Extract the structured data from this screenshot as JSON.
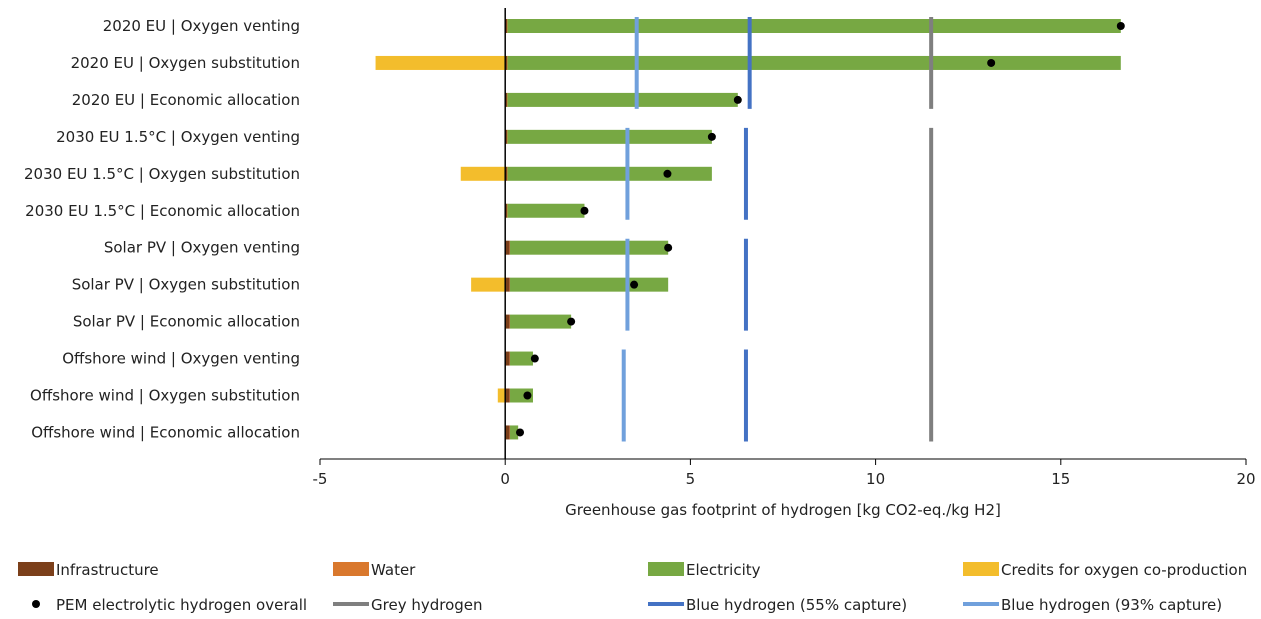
{
  "chart_data": {
    "type": "bar",
    "orientation": "horizontal",
    "stacked": true,
    "xlabel": "Greenhouse gas footprint of hydrogen [kg CO2-eq./kg H2]",
    "xlim": [
      -5,
      20
    ],
    "xticks": [
      "-5",
      "0",
      "5",
      "10",
      "15",
      "20"
    ],
    "grid": false,
    "legend_position": "bottom",
    "categories": [
      "2020 EU | Oxygen venting",
      "2020 EU | Oxygen substitution",
      "2020 EU | Economic allocation",
      "2030 EU 1.5°C | Oxygen venting",
      "2030 EU 1.5°C | Oxygen substitution",
      "2030 EU 1.5°C | Economic allocation",
      "Solar PV | Oxygen venting",
      "Solar PV | Oxygen substitution",
      "Solar PV | Economic allocation",
      "Offshore wind | Oxygen venting",
      "Offshore wind | Oxygen substitution",
      "Offshore wind | Economic allocation"
    ],
    "series": [
      {
        "name": "Infrastructure",
        "color": "#7b3f1a",
        "values": [
          0.05,
          0.05,
          0.05,
          0.05,
          0.05,
          0.05,
          0.12,
          0.12,
          0.12,
          0.12,
          0.12,
          0.12
        ]
      },
      {
        "name": "Water",
        "color": "#d9782d",
        "values": [
          0.01,
          0.01,
          0.01,
          0.01,
          0.01,
          0.01,
          0.01,
          0.01,
          0.01,
          0.01,
          0.01,
          0.01
        ]
      },
      {
        "name": "Electricity",
        "color": "#77a843",
        "values": [
          16.56,
          16.56,
          6.22,
          5.52,
          5.52,
          2.08,
          4.27,
          4.27,
          1.65,
          0.62,
          0.62,
          0.22
        ]
      },
      {
        "name": "Credits for oxygen co-production",
        "color": "#f3bd2c",
        "values": [
          0,
          -3.5,
          0,
          0,
          -1.2,
          0,
          0,
          -0.92,
          0,
          0,
          -0.2,
          0
        ]
      }
    ],
    "overall": {
      "name": "PEM electrolytic hydrogen overall",
      "color": "#000000",
      "values": [
        16.62,
        13.12,
        6.28,
        5.58,
        4.38,
        2.14,
        4.4,
        3.48,
        1.78,
        0.8,
        0.6,
        0.4
      ]
    },
    "reference_lines": [
      {
        "name": "Grey hydrogen",
        "color": "#7f7f7f",
        "segments": [
          {
            "value": 11.5,
            "from": 0,
            "to": 2
          },
          {
            "value": 11.5,
            "from": 3,
            "to": 11
          }
        ]
      },
      {
        "name": "Blue hydrogen (55% capture)",
        "color": "#4472c4",
        "segments": [
          {
            "value": 6.6,
            "from": 0,
            "to": 2
          },
          {
            "value": 6.5,
            "from": 3,
            "to": 5
          },
          {
            "value": 6.5,
            "from": 6,
            "to": 8
          },
          {
            "value": 6.5,
            "from": 9,
            "to": 11
          }
        ]
      },
      {
        "name": "Blue hydrogen (93% capture)",
        "color": "#70a0dc",
        "segments": [
          {
            "value": 3.55,
            "from": 0,
            "to": 2
          },
          {
            "value": 3.3,
            "from": 3,
            "to": 5
          },
          {
            "value": 3.3,
            "from": 6,
            "to": 8
          },
          {
            "value": 3.2,
            "from": 9,
            "to": 11
          }
        ]
      }
    ],
    "legend": [
      {
        "label": "Infrastructure",
        "kind": "box",
        "color": "#7b3f1a"
      },
      {
        "label": "Water",
        "kind": "box",
        "color": "#d9782d"
      },
      {
        "label": "Electricity",
        "kind": "box",
        "color": "#77a843"
      },
      {
        "label": "Credits for oxygen co-production",
        "kind": "box",
        "color": "#f3bd2c"
      },
      {
        "label": "PEM electrolytic hydrogen overall",
        "kind": "dot",
        "color": "#000000"
      },
      {
        "label": "Grey hydrogen",
        "kind": "line",
        "color": "#7f7f7f"
      },
      {
        "label": "Blue hydrogen (55% capture)",
        "kind": "line",
        "color": "#4472c4"
      },
      {
        "label": "Blue hydrogen (93% capture)",
        "kind": "line",
        "color": "#70a0dc"
      }
    ]
  }
}
